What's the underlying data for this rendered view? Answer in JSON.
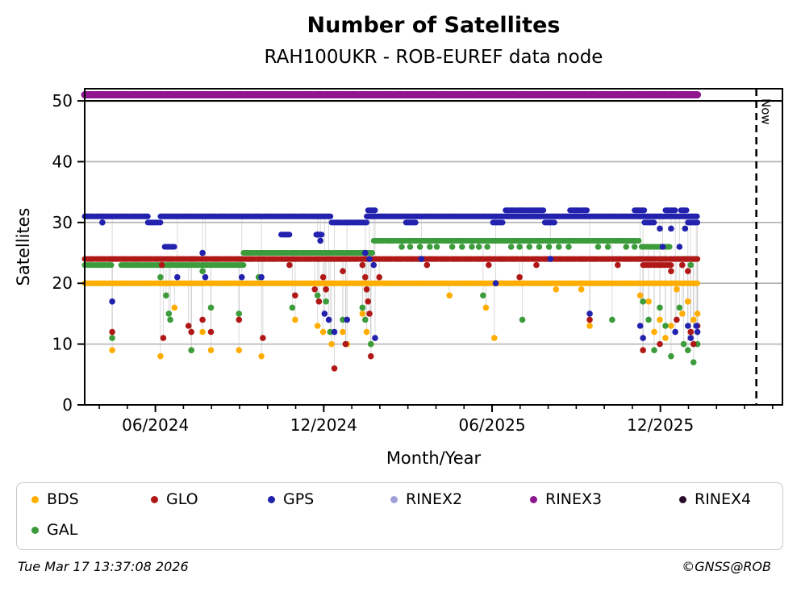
{
  "title": "Number of Satellites",
  "subtitle": "RAH100UKR - ROB-EUREF data node",
  "footer": {
    "left": "Tue Mar 17 13:37:08 2026",
    "right": "©GNSS@ROB"
  },
  "legend": {
    "items": [
      {
        "label": "BDS",
        "color": "#FFAE00"
      },
      {
        "label": "GLO",
        "color": "#B01818"
      },
      {
        "label": "GPS",
        "color": "#2222AE"
      },
      {
        "label": "RINEX2",
        "color": "#A0A0D8"
      },
      {
        "label": "RINEX3",
        "color": "#8E168E"
      },
      {
        "label": "RINEX4",
        "color": "#2B0B2B"
      },
      {
        "label": "GAL",
        "color": "#3C9C3C"
      }
    ]
  },
  "chart_data": {
    "type": "scatter",
    "title": "Number of Satellites",
    "subtitle": "RAH100UKR - ROB-EUREF data node",
    "xlabel": "Month/Year",
    "ylabel": "Satellites",
    "ylim": [
      0,
      52
    ],
    "x_range_months": [
      0,
      24.87
    ],
    "grid": true,
    "y_ticks": [
      0,
      10,
      20,
      30,
      40,
      50
    ],
    "y_gridlines": [
      10,
      20,
      30,
      40
    ],
    "reference_line": {
      "y": 50,
      "color": "#000000"
    },
    "x_ticks": {
      "minor_start": 0.52,
      "minor_step": 1.0,
      "minor_count": 25,
      "major": [
        {
          "t": 2.52,
          "label": "06/2024"
        },
        {
          "t": 8.52,
          "label": "12/2024"
        },
        {
          "t": 14.52,
          "label": "06/2025"
        },
        {
          "t": 20.52,
          "label": "12/2025"
        }
      ]
    },
    "now_marker": {
      "t": 23.94,
      "label": "Now"
    },
    "data_end_t": 21.84,
    "series": [
      {
        "name": "BDS",
        "color": "#FFAE00",
        "base": 20,
        "band_width": 7,
        "segments": [
          [
            0,
            21.84,
            20
          ]
        ],
        "points": [
          [
            0.98,
            9
          ],
          [
            2.7,
            8
          ],
          [
            3.2,
            16
          ],
          [
            3.8,
            9
          ],
          [
            4.2,
            12
          ],
          [
            4.5,
            9
          ],
          [
            5.5,
            9
          ],
          [
            6.3,
            8
          ],
          [
            7.5,
            14
          ],
          [
            8.3,
            13
          ],
          [
            8.5,
            12
          ],
          [
            8.8,
            10
          ],
          [
            9.2,
            12
          ],
          [
            9.35,
            10
          ],
          [
            9.9,
            15
          ],
          [
            10.05,
            12
          ],
          [
            10.2,
            10
          ],
          [
            13.0,
            18
          ],
          [
            14.3,
            16
          ],
          [
            14.6,
            11
          ],
          [
            16.8,
            19
          ],
          [
            17.7,
            19
          ],
          [
            18.0,
            13
          ],
          [
            19.8,
            18
          ],
          [
            19.9,
            9
          ],
          [
            20.1,
            17
          ],
          [
            20.3,
            12
          ],
          [
            20.5,
            14
          ],
          [
            20.7,
            11
          ],
          [
            20.9,
            13
          ],
          [
            21.1,
            19
          ],
          [
            21.3,
            15
          ],
          [
            21.5,
            17
          ],
          [
            21.6,
            12
          ],
          [
            21.7,
            14
          ],
          [
            21.84,
            15
          ]
        ]
      },
      {
        "name": "GAL",
        "color": "#3C9C3C",
        "base": 23,
        "band_width": 7,
        "segments": [
          [
            0,
            0.95,
            23
          ],
          [
            1.3,
            5.66,
            23
          ],
          [
            5.66,
            10.25,
            25
          ],
          [
            10.3,
            19.75,
            27
          ],
          [
            19.85,
            20.85,
            26
          ],
          [
            21.15,
            21.84,
            24
          ]
        ],
        "points": [
          [
            0.98,
            11
          ],
          [
            2.7,
            21
          ],
          [
            2.9,
            18
          ],
          [
            3.0,
            15
          ],
          [
            3.05,
            14
          ],
          [
            3.8,
            9
          ],
          [
            4.2,
            22
          ],
          [
            4.5,
            16
          ],
          [
            5.5,
            15
          ],
          [
            6.2,
            21
          ],
          [
            7.4,
            16
          ],
          [
            8.3,
            18
          ],
          [
            8.6,
            17
          ],
          [
            8.75,
            12
          ],
          [
            9.2,
            14
          ],
          [
            9.3,
            10
          ],
          [
            9.9,
            16
          ],
          [
            10.0,
            14
          ],
          [
            10.2,
            10
          ],
          [
            11.3,
            26
          ],
          [
            11.6,
            26
          ],
          [
            11.95,
            26
          ],
          [
            12.3,
            26
          ],
          [
            12.55,
            26
          ],
          [
            13.1,
            26
          ],
          [
            13.45,
            26
          ],
          [
            13.8,
            26
          ],
          [
            14.05,
            26
          ],
          [
            14.35,
            26
          ],
          [
            15.2,
            26
          ],
          [
            15.5,
            26
          ],
          [
            15.85,
            26
          ],
          [
            16.2,
            26
          ],
          [
            16.55,
            26
          ],
          [
            16.9,
            26
          ],
          [
            17.25,
            26
          ],
          [
            18.3,
            26
          ],
          [
            18.65,
            26
          ],
          [
            19.3,
            26
          ],
          [
            19.6,
            26
          ],
          [
            14.2,
            18
          ],
          [
            15.6,
            14
          ],
          [
            18.8,
            14
          ],
          [
            19.9,
            17
          ],
          [
            20.1,
            14
          ],
          [
            20.3,
            9
          ],
          [
            20.5,
            16
          ],
          [
            20.7,
            13
          ],
          [
            20.9,
            8
          ],
          [
            21.2,
            16
          ],
          [
            21.35,
            10
          ],
          [
            21.5,
            9
          ],
          [
            21.6,
            23
          ],
          [
            21.7,
            7
          ],
          [
            21.84,
            10
          ]
        ]
      },
      {
        "name": "GLO",
        "color": "#B01818",
        "base": 24,
        "band_width": 7,
        "segments": [
          [
            0,
            21.84,
            24
          ],
          [
            19.9,
            20.9,
            23
          ]
        ],
        "points": [
          [
            0.98,
            12
          ],
          [
            2.75,
            23
          ],
          [
            2.8,
            11
          ],
          [
            3.7,
            13
          ],
          [
            3.8,
            12
          ],
          [
            4.2,
            14
          ],
          [
            4.5,
            12
          ],
          [
            5.5,
            14
          ],
          [
            6.35,
            11
          ],
          [
            7.3,
            23
          ],
          [
            7.5,
            18
          ],
          [
            8.2,
            19
          ],
          [
            8.35,
            17
          ],
          [
            8.5,
            21
          ],
          [
            8.6,
            19
          ],
          [
            8.9,
            6
          ],
          [
            9.2,
            22
          ],
          [
            9.3,
            10
          ],
          [
            9.9,
            23
          ],
          [
            10.0,
            21
          ],
          [
            10.05,
            19
          ],
          [
            10.1,
            17
          ],
          [
            10.15,
            15
          ],
          [
            10.2,
            8
          ],
          [
            10.5,
            21
          ],
          [
            12.2,
            23
          ],
          [
            14.4,
            23
          ],
          [
            15.5,
            21
          ],
          [
            16.1,
            23
          ],
          [
            18.0,
            14
          ],
          [
            19.0,
            23
          ],
          [
            19.9,
            9
          ],
          [
            20.5,
            10
          ],
          [
            20.9,
            22
          ],
          [
            21.1,
            14
          ],
          [
            21.3,
            23
          ],
          [
            21.5,
            22
          ],
          [
            21.6,
            12
          ],
          [
            21.7,
            10
          ],
          [
            21.84,
            13
          ]
        ]
      },
      {
        "name": "GPS",
        "color": "#2222AE",
        "base": 31,
        "band_width": 7,
        "segments": [
          [
            0,
            2.25,
            31
          ],
          [
            2.7,
            8.8,
            31
          ],
          [
            10.05,
            21.84,
            31
          ],
          [
            2.25,
            2.7,
            30
          ],
          [
            8.8,
            10.05,
            30
          ],
          [
            11.45,
            11.85,
            30
          ],
          [
            14.55,
            14.95,
            30
          ],
          [
            16.4,
            16.8,
            30
          ],
          [
            19.95,
            20.3,
            30
          ],
          [
            21.5,
            21.84,
            30
          ],
          [
            10.1,
            10.35,
            32
          ],
          [
            15.0,
            16.35,
            32
          ],
          [
            17.3,
            17.9,
            32
          ],
          [
            19.6,
            20.0,
            32
          ],
          [
            20.7,
            21.1,
            32
          ],
          [
            21.25,
            21.45,
            32
          ],
          [
            7.0,
            7.3,
            28
          ],
          [
            8.25,
            8.45,
            28
          ],
          [
            2.85,
            3.2,
            26
          ]
        ],
        "points": [
          [
            0.63,
            30
          ],
          [
            0.98,
            17
          ],
          [
            3.3,
            21
          ],
          [
            4.2,
            25
          ],
          [
            4.3,
            21
          ],
          [
            5.6,
            21
          ],
          [
            6.3,
            21
          ],
          [
            8.3,
            28
          ],
          [
            8.4,
            27
          ],
          [
            8.55,
            15
          ],
          [
            8.7,
            14
          ],
          [
            8.9,
            12
          ],
          [
            9.35,
            14
          ],
          [
            10.0,
            25
          ],
          [
            10.15,
            24
          ],
          [
            10.3,
            23
          ],
          [
            10.35,
            11
          ],
          [
            12.0,
            24
          ],
          [
            14.65,
            20
          ],
          [
            16.6,
            24
          ],
          [
            18.0,
            15
          ],
          [
            19.8,
            13
          ],
          [
            19.9,
            11
          ],
          [
            20.5,
            29
          ],
          [
            20.6,
            26
          ],
          [
            20.9,
            29
          ],
          [
            21.05,
            12
          ],
          [
            21.2,
            26
          ],
          [
            21.4,
            29
          ],
          [
            21.5,
            13
          ],
          [
            21.6,
            11
          ],
          [
            21.8,
            13
          ],
          [
            21.84,
            12
          ]
        ]
      },
      {
        "name": "RINEX2",
        "color": "#A0A0D8",
        "base": 51,
        "band_width": 8,
        "segments": [],
        "points": []
      },
      {
        "name": "RINEX3",
        "color": "#8E168E",
        "base": 51,
        "band_width": 9,
        "segments": [
          [
            0,
            21.84,
            51
          ]
        ],
        "points": []
      },
      {
        "name": "RINEX4",
        "color": "#2B0B2B",
        "base": 50,
        "band_width": 7,
        "segments": [],
        "points": []
      }
    ]
  }
}
